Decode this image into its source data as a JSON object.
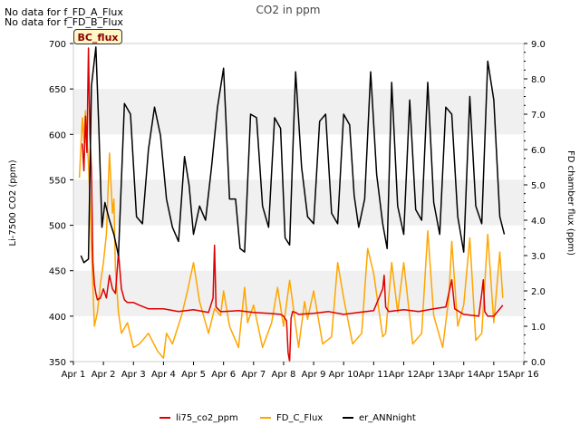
{
  "notes": [
    "No data for f_FD_A_Flux",
    "No data for f_FD_B_Flux"
  ],
  "badge": "BC_flux",
  "colors": {
    "li75": "#dd0000",
    "fd": "#ffa500",
    "er": "#000000",
    "band": "#f0f0f0"
  },
  "chart_data": {
    "type": "line",
    "title": "CO2 in ppm",
    "ylabel": "Li-7500 CO2 (ppm)",
    "y2label": "FD chamber flux (ppm)",
    "x_ticks": [
      "Apr 1",
      "Apr 2",
      "Apr 3",
      "Apr 4",
      "Apr 5",
      "Apr 6",
      "Apr 7",
      "Apr 8",
      "Apr 9",
      "Apr 10",
      "Apr 11",
      "Apr 12",
      "Apr 13",
      "Apr 14",
      "Apr 15",
      "Apr 16"
    ],
    "xlim": [
      1,
      16
    ],
    "ylim": [
      350,
      700
    ],
    "y_ticks": [
      350,
      400,
      450,
      500,
      550,
      600,
      650,
      700
    ],
    "y2lim": [
      0,
      9
    ],
    "y2_ticks": [
      "0.0",
      "1.0",
      "2.0",
      "3.0",
      "4.0",
      "5.0",
      "6.0",
      "7.0",
      "8.0",
      "9.0"
    ],
    "bands": [
      [
        400,
        450
      ],
      [
        500,
        550
      ],
      [
        600,
        650
      ]
    ],
    "grid": false,
    "legend_position": "bottom",
    "series": [
      {
        "name": "li75_co2_ppm",
        "axis": "left",
        "x": [
          1.3,
          1.35,
          1.4,
          1.45,
          1.5,
          1.55,
          1.6,
          1.65,
          1.7,
          1.75,
          1.8,
          1.9,
          2.0,
          2.1,
          2.2,
          2.3,
          2.4,
          2.5,
          2.6,
          2.7,
          2.8,
          2.9,
          3.0,
          3.2,
          3.5,
          4.0,
          4.5,
          5.0,
          5.5,
          5.65,
          5.7,
          5.75,
          5.9,
          6.0,
          6.5,
          7.0,
          7.5,
          7.9,
          8.0,
          8.1,
          8.15,
          8.2,
          8.25,
          8.3,
          8.4,
          8.5,
          9.0,
          9.5,
          10.0,
          10.5,
          11.0,
          11.3,
          11.35,
          11.4,
          11.5,
          12.0,
          12.5,
          13.0,
          13.4,
          13.5,
          13.6,
          13.7,
          14.0,
          14.5,
          14.6,
          14.65,
          14.7,
          14.8,
          15.0,
          15.3
        ],
        "values": [
          590,
          560,
          620,
          580,
          695,
          600,
          560,
          460,
          435,
          425,
          418,
          420,
          430,
          420,
          445,
          430,
          425,
          470,
          430,
          418,
          415,
          415,
          415,
          412,
          408,
          408,
          405,
          407,
          404,
          420,
          478,
          410,
          405,
          405,
          406,
          404,
          403,
          402,
          400,
          395,
          360,
          350,
          398,
          405,
          404,
          402,
          403,
          405,
          402,
          404,
          406,
          430,
          445,
          410,
          405,
          407,
          405,
          408,
          410,
          425,
          440,
          408,
          402,
          400,
          425,
          440,
          405,
          400,
          400,
          412
        ]
      },
      {
        "name": "FD_C_Flux",
        "axis": "right",
        "x": [
          1.2,
          1.3,
          1.35,
          1.4,
          1.5,
          1.55,
          1.6,
          1.7,
          1.8,
          1.9,
          2.0,
          2.1,
          2.2,
          2.3,
          2.35,
          2.4,
          2.5,
          2.6,
          2.8,
          3.0,
          3.2,
          3.5,
          3.8,
          4.0,
          4.1,
          4.3,
          4.6,
          4.8,
          5.0,
          5.2,
          5.5,
          5.7,
          5.9,
          6.0,
          6.2,
          6.5,
          6.7,
          6.8,
          7.0,
          7.3,
          7.6,
          7.8,
          8.0,
          8.2,
          8.5,
          8.7,
          8.8,
          9.0,
          9.3,
          9.6,
          9.8,
          10.0,
          10.3,
          10.6,
          10.8,
          11.0,
          11.3,
          11.4,
          11.6,
          11.8,
          12.0,
          12.3,
          12.6,
          12.8,
          13.0,
          13.3,
          13.5,
          13.6,
          13.8,
          14.0,
          14.2,
          14.4,
          14.6,
          14.8,
          15.0,
          15.2,
          15.3
        ],
        "values": [
          5.2,
          6.9,
          6.2,
          7.1,
          5.6,
          4.6,
          3.2,
          1.0,
          1.4,
          2.2,
          2.8,
          3.6,
          5.9,
          4.2,
          4.6,
          2.6,
          1.4,
          0.8,
          1.1,
          0.4,
          0.5,
          0.8,
          0.3,
          0.1,
          0.8,
          0.5,
          1.3,
          2.0,
          2.8,
          1.7,
          0.8,
          1.5,
          1.3,
          2.0,
          1.0,
          0.4,
          2.1,
          1.1,
          1.6,
          0.4,
          1.1,
          2.1,
          1.0,
          2.3,
          0.4,
          1.7,
          1.2,
          2.0,
          0.5,
          0.7,
          2.8,
          1.8,
          0.5,
          0.8,
          3.2,
          2.5,
          0.7,
          0.8,
          2.8,
          1.4,
          2.8,
          0.5,
          0.8,
          3.7,
          1.3,
          0.4,
          1.8,
          3.4,
          1.0,
          1.6,
          3.5,
          0.6,
          0.8,
          3.6,
          1.1,
          3.1,
          1.8
        ]
      },
      {
        "name": "er_ANNnight",
        "axis": "right",
        "x": [
          1.25,
          1.35,
          1.5,
          1.6,
          1.75,
          1.85,
          1.95,
          2.05,
          2.2,
          2.35,
          2.5,
          2.7,
          2.9,
          3.1,
          3.3,
          3.5,
          3.7,
          3.9,
          4.1,
          4.3,
          4.5,
          4.7,
          4.85,
          5.0,
          5.2,
          5.4,
          5.6,
          5.8,
          6.0,
          6.2,
          6.4,
          6.55,
          6.7,
          6.9,
          7.1,
          7.3,
          7.5,
          7.7,
          7.9,
          8.05,
          8.2,
          8.3,
          8.4,
          8.6,
          8.8,
          9.0,
          9.2,
          9.4,
          9.6,
          9.8,
          10.0,
          10.2,
          10.35,
          10.5,
          10.7,
          10.9,
          11.1,
          11.3,
          11.45,
          11.6,
          11.8,
          12.0,
          12.2,
          12.4,
          12.6,
          12.8,
          13.0,
          13.2,
          13.4,
          13.6,
          13.8,
          14.0,
          14.2,
          14.4,
          14.6,
          14.8,
          15.0,
          15.2,
          15.35
        ],
        "values": [
          3.0,
          2.8,
          2.9,
          7.8,
          8.9,
          6.5,
          3.8,
          4.5,
          4.0,
          3.6,
          3.0,
          7.3,
          7.0,
          4.1,
          3.9,
          6.0,
          7.2,
          6.4,
          4.6,
          3.8,
          3.4,
          5.8,
          5.0,
          3.6,
          4.4,
          4.0,
          5.5,
          7.2,
          8.3,
          4.6,
          4.6,
          3.2,
          3.1,
          7.0,
          6.9,
          4.4,
          3.8,
          6.9,
          6.6,
          3.5,
          3.3,
          5.8,
          8.2,
          5.5,
          4.1,
          3.9,
          6.8,
          7.0,
          4.2,
          3.9,
          7.0,
          6.7,
          4.7,
          3.8,
          4.6,
          8.2,
          5.3,
          3.9,
          3.2,
          7.9,
          4.4,
          3.6,
          7.4,
          4.3,
          4.0,
          7.9,
          4.5,
          3.6,
          7.2,
          7.0,
          4.1,
          3.1,
          7.5,
          4.4,
          3.9,
          8.5,
          7.4,
          4.1,
          3.6
        ]
      }
    ]
  }
}
